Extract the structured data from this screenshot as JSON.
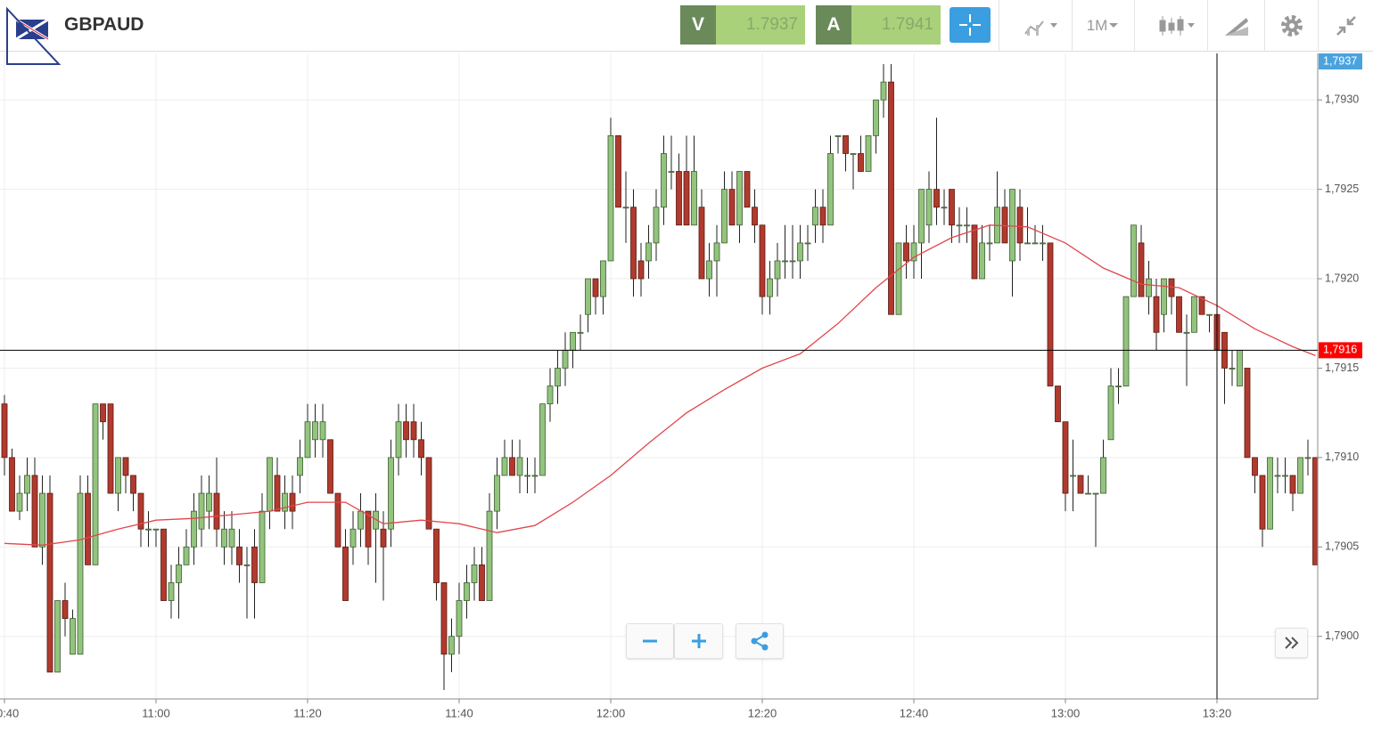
{
  "header": {
    "symbol": "GBPAUD",
    "bid": {
      "label": "V",
      "value": "1.7937"
    },
    "ask": {
      "label": "A",
      "value": "1.7941"
    },
    "timeframe": "1M"
  },
  "chart_data": {
    "type": "candlestick",
    "up_color": "#93c47d",
    "down_color": "#b03a2e",
    "grid": true,
    "ylim": [
      1.78965,
      1.79326
    ],
    "yticks": [
      {
        "value": 1.79,
        "label": "1,7900"
      },
      {
        "value": 1.7905,
        "label": "1,7905"
      },
      {
        "value": 1.791,
        "label": "1,7910"
      },
      {
        "value": 1.7915,
        "label": "1,7915"
      },
      {
        "value": 1.792,
        "label": "1,7920"
      },
      {
        "value": 1.7925,
        "label": "1,7925"
      },
      {
        "value": 1.793,
        "label": "1,7930"
      }
    ],
    "xticks": [
      "10:40",
      "11:00",
      "11:20",
      "11:40",
      "12:00",
      "12:20",
      "12:40",
      "13:00",
      "13:20"
    ],
    "x": [
      "10:40",
      "10:41",
      "10:42",
      "10:43",
      "10:44",
      "10:45",
      "10:46",
      "10:47",
      "10:48",
      "10:49",
      "10:50",
      "10:51",
      "10:52",
      "10:53",
      "10:54",
      "10:55",
      "10:56",
      "10:57",
      "10:58",
      "10:59",
      "11:00",
      "11:01",
      "11:02",
      "11:03",
      "11:04",
      "11:05",
      "11:06",
      "11:07",
      "11:08",
      "11:09",
      "11:10",
      "11:11",
      "11:12",
      "11:13",
      "11:14",
      "11:15",
      "11:16",
      "11:17",
      "11:18",
      "11:19",
      "11:20",
      "11:21",
      "11:22",
      "11:23",
      "11:24",
      "11:25",
      "11:26",
      "11:27",
      "11:28",
      "11:29",
      "11:30",
      "11:31",
      "11:32",
      "11:33",
      "11:34",
      "11:35",
      "11:36",
      "11:37",
      "11:38",
      "11:39",
      "11:40",
      "11:41",
      "11:42",
      "11:43",
      "11:44",
      "11:45",
      "11:46",
      "11:47",
      "11:48",
      "11:49",
      "11:50",
      "11:51",
      "11:52",
      "11:53",
      "11:54",
      "11:55",
      "11:56",
      "11:57",
      "11:58",
      "11:59",
      "12:00",
      "12:01",
      "12:02",
      "12:03",
      "12:04",
      "12:05",
      "12:06",
      "12:07",
      "12:08",
      "12:09",
      "12:10",
      "12:11",
      "12:12",
      "12:13",
      "12:14",
      "12:15",
      "12:16",
      "12:17",
      "12:18",
      "12:19",
      "12:20",
      "12:21",
      "12:22",
      "12:23",
      "12:24",
      "12:25",
      "12:26",
      "12:27",
      "12:28",
      "12:29",
      "12:30",
      "12:31",
      "12:32",
      "12:33",
      "12:34",
      "12:35",
      "12:36",
      "12:37",
      "12:38",
      "12:39",
      "12:40",
      "12:41",
      "12:42",
      "12:43",
      "12:44",
      "12:45",
      "12:46",
      "12:47",
      "12:48",
      "12:49",
      "12:50",
      "12:51",
      "12:52",
      "12:53",
      "12:54",
      "12:55",
      "12:56",
      "12:57",
      "12:58",
      "12:59",
      "13:00",
      "13:01",
      "13:02",
      "13:03",
      "13:04",
      "13:05",
      "13:06",
      "13:07",
      "13:08",
      "13:09",
      "13:10",
      "13:11",
      "13:12",
      "13:13",
      "13:14",
      "13:15",
      "13:16",
      "13:17",
      "13:18",
      "13:19",
      "13:20",
      "13:21",
      "13:22",
      "13:23",
      "13:24",
      "13:25",
      "13:26",
      "13:27",
      "13:28",
      "13:29",
      "13:30",
      "13:31",
      "13:32",
      "13:33"
    ],
    "candles": [
      [
        1.7913,
        1.79135,
        1.7909,
        1.791
      ],
      [
        1.791,
        1.79105,
        1.7907,
        1.7907
      ],
      [
        1.7907,
        1.7909,
        1.79065,
        1.7908
      ],
      [
        1.7908,
        1.791,
        1.7907,
        1.7909
      ],
      [
        1.7909,
        1.791,
        1.7905,
        1.7905
      ],
      [
        1.7905,
        1.7909,
        1.7904,
        1.7908
      ],
      [
        1.7908,
        1.7909,
        1.7898,
        1.7898
      ],
      [
        1.7898,
        1.7902,
        1.7898,
        1.7902
      ],
      [
        1.7902,
        1.7903,
        1.79,
        1.7901
      ],
      [
        1.7899,
        1.79015,
        1.7899,
        1.7901
      ],
      [
        1.7899,
        1.7909,
        1.7899,
        1.7908
      ],
      [
        1.7908,
        1.7909,
        1.7904,
        1.7904
      ],
      [
        1.7904,
        1.7913,
        1.7904,
        1.7913
      ],
      [
        1.7913,
        1.7913,
        1.7911,
        1.7912
      ],
      [
        1.7913,
        1.7913,
        1.7908,
        1.7908
      ],
      [
        1.7908,
        1.791,
        1.7907,
        1.791
      ],
      [
        1.791,
        1.791,
        1.7908,
        1.7909
      ],
      [
        1.7909,
        1.7909,
        1.7907,
        1.7908
      ],
      [
        1.7908,
        1.7908,
        1.7905,
        1.7906
      ],
      [
        1.7906,
        1.7907,
        1.7905,
        1.7906
      ],
      [
        1.7906,
        1.7906,
        1.7905,
        1.7906
      ],
      [
        1.7906,
        1.7906,
        1.7902,
        1.7902
      ],
      [
        1.7902,
        1.7904,
        1.7901,
        1.7903
      ],
      [
        1.7903,
        1.7905,
        1.7901,
        1.7904
      ],
      [
        1.7904,
        1.7906,
        1.7904,
        1.7905
      ],
      [
        1.7905,
        1.7908,
        1.7904,
        1.7907
      ],
      [
        1.7906,
        1.7909,
        1.7905,
        1.7908
      ],
      [
        1.7907,
        1.7909,
        1.7906,
        1.7908
      ],
      [
        1.7908,
        1.791,
        1.7905,
        1.7906
      ],
      [
        1.7905,
        1.7907,
        1.7904,
        1.7906
      ],
      [
        1.7905,
        1.7907,
        1.7904,
        1.7906
      ],
      [
        1.7905,
        1.7906,
        1.7903,
        1.7904
      ],
      [
        1.7904,
        1.7905,
        1.7901,
        1.7904
      ],
      [
        1.7905,
        1.7906,
        1.7901,
        1.7903
      ],
      [
        1.7903,
        1.7908,
        1.7903,
        1.7907
      ],
      [
        1.7907,
        1.791,
        1.7906,
        1.791
      ],
      [
        1.7909,
        1.791,
        1.7907,
        1.7907
      ],
      [
        1.7907,
        1.7909,
        1.7906,
        1.7908
      ],
      [
        1.7908,
        1.7909,
        1.7906,
        1.7907
      ],
      [
        1.7909,
        1.7911,
        1.7908,
        1.791
      ],
      [
        1.791,
        1.7913,
        1.791,
        1.7912
      ],
      [
        1.7911,
        1.7913,
        1.791,
        1.7912
      ],
      [
        1.7911,
        1.7913,
        1.791,
        1.7912
      ],
      [
        1.7911,
        1.7911,
        1.7908,
        1.7908
      ],
      [
        1.7908,
        1.7908,
        1.7905,
        1.7905
      ],
      [
        1.7905,
        1.7906,
        1.7902,
        1.7902
      ],
      [
        1.7905,
        1.7907,
        1.7904,
        1.7906
      ],
      [
        1.7906,
        1.7908,
        1.7905,
        1.7907
      ],
      [
        1.7907,
        1.7907,
        1.7904,
        1.7905
      ],
      [
        1.7906,
        1.7908,
        1.7903,
        1.7907
      ],
      [
        1.7906,
        1.7907,
        1.7902,
        1.7905
      ],
      [
        1.7906,
        1.7911,
        1.7905,
        1.791
      ],
      [
        1.791,
        1.7913,
        1.7909,
        1.7912
      ],
      [
        1.7912,
        1.7913,
        1.791,
        1.7911
      ],
      [
        1.7912,
        1.7913,
        1.791,
        1.7911
      ],
      [
        1.7911,
        1.7912,
        1.7909,
        1.791
      ],
      [
        1.791,
        1.791,
        1.7906,
        1.7906
      ],
      [
        1.7906,
        1.7906,
        1.7902,
        1.7903
      ],
      [
        1.7903,
        1.7903,
        1.7897,
        1.7899
      ],
      [
        1.7899,
        1.7901,
        1.7898,
        1.79
      ],
      [
        1.79,
        1.7903,
        1.7899,
        1.7902
      ],
      [
        1.7902,
        1.7904,
        1.7901,
        1.7903
      ],
      [
        1.7903,
        1.7905,
        1.7902,
        1.7904
      ],
      [
        1.7904,
        1.7905,
        1.7902,
        1.7902
      ],
      [
        1.7902,
        1.7908,
        1.7902,
        1.7907
      ],
      [
        1.7907,
        1.791,
        1.7906,
        1.7909
      ],
      [
        1.7909,
        1.7911,
        1.7909,
        1.791
      ],
      [
        1.791,
        1.7911,
        1.7909,
        1.7909
      ],
      [
        1.7909,
        1.7911,
        1.7908,
        1.791
      ],
      [
        1.7909,
        1.791,
        1.7908,
        1.7909
      ],
      [
        1.7909,
        1.791,
        1.7908,
        1.7909
      ],
      [
        1.7909,
        1.7913,
        1.7909,
        1.7913
      ],
      [
        1.7913,
        1.7915,
        1.7912,
        1.7914
      ],
      [
        1.7914,
        1.7916,
        1.7913,
        1.7915
      ],
      [
        1.7915,
        1.7917,
        1.7914,
        1.7916
      ],
      [
        1.7916,
        1.7917,
        1.7915,
        1.7917
      ],
      [
        1.7917,
        1.7918,
        1.7916,
        1.7917
      ],
      [
        1.7918,
        1.792,
        1.7917,
        1.792
      ],
      [
        1.792,
        1.792,
        1.7918,
        1.7919
      ],
      [
        1.7919,
        1.7921,
        1.7918,
        1.7921
      ],
      [
        1.7921,
        1.7929,
        1.7921,
        1.7928
      ],
      [
        1.7928,
        1.7928,
        1.7924,
        1.7924
      ],
      [
        1.7924,
        1.7926,
        1.7922,
        1.7924
      ],
      [
        1.7924,
        1.7925,
        1.7919,
        1.792
      ],
      [
        1.7921,
        1.7922,
        1.7919,
        1.792
      ],
      [
        1.7921,
        1.7923,
        1.792,
        1.7922
      ],
      [
        1.7922,
        1.7925,
        1.7921,
        1.7924
      ],
      [
        1.7924,
        1.7928,
        1.7923,
        1.7927
      ],
      [
        1.7926,
        1.7928,
        1.7925,
        1.7926
      ],
      [
        1.7926,
        1.7927,
        1.7923,
        1.7923
      ],
      [
        1.7926,
        1.7928,
        1.7923,
        1.7923
      ],
      [
        1.7923,
        1.7928,
        1.7923,
        1.7926
      ],
      [
        1.7924,
        1.7925,
        1.792,
        1.792
      ],
      [
        1.792,
        1.7922,
        1.7919,
        1.7921
      ],
      [
        1.7921,
        1.7923,
        1.7919,
        1.7922
      ],
      [
        1.7922,
        1.7926,
        1.7922,
        1.7925
      ],
      [
        1.7925,
        1.7926,
        1.7923,
        1.7923
      ],
      [
        1.7923,
        1.7926,
        1.7922,
        1.7926
      ],
      [
        1.7926,
        1.7926,
        1.7924,
        1.7924
      ],
      [
        1.7924,
        1.7925,
        1.7922,
        1.7923
      ],
      [
        1.7923,
        1.7923,
        1.7918,
        1.7919
      ],
      [
        1.7919,
        1.7921,
        1.7918,
        1.792
      ],
      [
        1.792,
        1.7922,
        1.7919,
        1.7921
      ],
      [
        1.7921,
        1.7923,
        1.792,
        1.7921
      ],
      [
        1.7921,
        1.7923,
        1.792,
        1.7921
      ],
      [
        1.7921,
        1.7923,
        1.792,
        1.7922
      ],
      [
        1.7922,
        1.7923,
        1.7921,
        1.7922
      ],
      [
        1.7923,
        1.7925,
        1.7922,
        1.7924
      ],
      [
        1.7924,
        1.7925,
        1.7922,
        1.7923
      ],
      [
        1.7923,
        1.7928,
        1.7923,
        1.7927
      ],
      [
        1.7928,
        1.7928,
        1.7927,
        1.7928
      ],
      [
        1.7928,
        1.7928,
        1.7926,
        1.7927
      ],
      [
        1.7927,
        1.7927,
        1.7925,
        1.7927
      ],
      [
        1.7927,
        1.7928,
        1.7926,
        1.7926
      ],
      [
        1.7926,
        1.7928,
        1.7926,
        1.7928
      ],
      [
        1.7928,
        1.793,
        1.7927,
        1.793
      ],
      [
        1.793,
        1.7932,
        1.7929,
        1.7931
      ],
      [
        1.7931,
        1.7932,
        1.7918,
        1.7918
      ],
      [
        1.7918,
        1.7922,
        1.7918,
        1.7922
      ],
      [
        1.7922,
        1.7923,
        1.792,
        1.7921
      ],
      [
        1.7921,
        1.7923,
        1.792,
        1.7922
      ],
      [
        1.7922,
        1.7925,
        1.792,
        1.7925
      ],
      [
        1.7923,
        1.7926,
        1.7922,
        1.7925
      ],
      [
        1.7925,
        1.7929,
        1.7923,
        1.7924
      ],
      [
        1.7924,
        1.7925,
        1.7923,
        1.7924
      ],
      [
        1.7925,
        1.7925,
        1.7922,
        1.7923
      ],
      [
        1.7923,
        1.7924,
        1.7922,
        1.7923
      ],
      [
        1.7923,
        1.7924,
        1.7922,
        1.7923
      ],
      [
        1.7923,
        1.7923,
        1.792,
        1.792
      ],
      [
        1.792,
        1.7923,
        1.792,
        1.7922
      ],
      [
        1.7922,
        1.7923,
        1.7921,
        1.7922
      ],
      [
        1.7922,
        1.7926,
        1.7922,
        1.7924
      ],
      [
        1.7924,
        1.7925,
        1.7922,
        1.7922
      ],
      [
        1.7921,
        1.7925,
        1.7919,
        1.7925
      ],
      [
        1.7924,
        1.7925,
        1.7921,
        1.7922
      ],
      [
        1.7922,
        1.7924,
        1.7922,
        1.7922
      ],
      [
        1.7922,
        1.7923,
        1.7922,
        1.7922
      ],
      [
        1.7922,
        1.7923,
        1.7921,
        1.7922
      ],
      [
        1.7922,
        1.7922,
        1.7914,
        1.7914
      ],
      [
        1.7914,
        1.7914,
        1.7912,
        1.7912
      ],
      [
        1.7912,
        1.7912,
        1.7907,
        1.7908
      ],
      [
        1.7909,
        1.7911,
        1.7907,
        1.7909
      ],
      [
        1.7909,
        1.7909,
        1.7908,
        1.7908
      ],
      [
        1.7908,
        1.7909,
        1.7908,
        1.7908
      ],
      [
        1.7908,
        1.7908,
        1.7905,
        1.7908
      ],
      [
        1.7908,
        1.7911,
        1.7908,
        1.791
      ],
      [
        1.7911,
        1.7915,
        1.7911,
        1.7914
      ],
      [
        1.7914,
        1.7915,
        1.7913,
        1.7914
      ],
      [
        1.7914,
        1.7919,
        1.7914,
        1.7919
      ],
      [
        1.7919,
        1.7923,
        1.7919,
        1.7923
      ],
      [
        1.7922,
        1.7923,
        1.7919,
        1.7919
      ],
      [
        1.7919,
        1.7921,
        1.7918,
        1.792
      ],
      [
        1.7919,
        1.792,
        1.7916,
        1.7917
      ],
      [
        1.7918,
        1.792,
        1.7917,
        1.792
      ],
      [
        1.792,
        1.792,
        1.7918,
        1.7919
      ],
      [
        1.7919,
        1.7919,
        1.7917,
        1.7917
      ],
      [
        1.7917,
        1.7918,
        1.7914,
        1.7917
      ],
      [
        1.7917,
        1.7919,
        1.7917,
        1.7919
      ],
      [
        1.7919,
        1.7919,
        1.7918,
        1.7918
      ],
      [
        1.7918,
        1.7918,
        1.7917,
        1.7918
      ],
      [
        1.7918,
        1.7918,
        1.7915,
        1.7916
      ],
      [
        1.7917,
        1.7917,
        1.7913,
        1.7915
      ],
      [
        1.7915,
        1.7916,
        1.7914,
        1.7915
      ],
      [
        1.7914,
        1.7916,
        1.7914,
        1.7916
      ],
      [
        1.7915,
        1.7915,
        1.791,
        1.791
      ],
      [
        1.791,
        1.791,
        1.7908,
        1.7909
      ],
      [
        1.7909,
        1.7909,
        1.7905,
        1.7906
      ],
      [
        1.7906,
        1.791,
        1.7906,
        1.791
      ],
      [
        1.7909,
        1.791,
        1.7908,
        1.7909
      ],
      [
        1.7909,
        1.791,
        1.7908,
        1.7909
      ],
      [
        1.7909,
        1.7909,
        1.7907,
        1.7908
      ],
      [
        1.7908,
        1.791,
        1.7908,
        1.791
      ],
      [
        1.791,
        1.7911,
        1.7909,
        1.791
      ],
      [
        1.791,
        1.791,
        1.7904,
        1.7904
      ]
    ],
    "moving_average": {
      "color": "#e0474c",
      "x": [
        "10:40",
        "10:45",
        "10:50",
        "10:55",
        "11:00",
        "11:05",
        "11:10",
        "11:15",
        "11:20",
        "11:25",
        "11:30",
        "11:35",
        "11:40",
        "11:45",
        "11:50",
        "11:55",
        "12:00",
        "12:05",
        "12:10",
        "12:15",
        "12:20",
        "12:25",
        "12:30",
        "12:35",
        "12:40",
        "12:45",
        "12:50",
        "12:55",
        "13:00",
        "13:05",
        "13:10",
        "13:15",
        "13:20",
        "13:25",
        "13:30",
        "13:33"
      ],
      "values": [
        1.79052,
        1.79051,
        1.79054,
        1.7906,
        1.79065,
        1.79066,
        1.79068,
        1.7907,
        1.79075,
        1.79075,
        1.79063,
        1.79065,
        1.79063,
        1.79058,
        1.79062,
        1.79075,
        1.7909,
        1.79108,
        1.79125,
        1.79138,
        1.7915,
        1.79158,
        1.79175,
        1.79195,
        1.79212,
        1.79223,
        1.7923,
        1.79229,
        1.7922,
        1.79206,
        1.79197,
        1.79195,
        1.79185,
        1.79172,
        1.79162,
        1.79157
      ]
    },
    "price_line": {
      "value": 1.7916,
      "label": "1,7916",
      "color": "#ff0000"
    },
    "current_price": {
      "value": 1.7937,
      "label": "1,7937",
      "color": "#4aa3df"
    },
    "crosshair_x": "13:20"
  }
}
